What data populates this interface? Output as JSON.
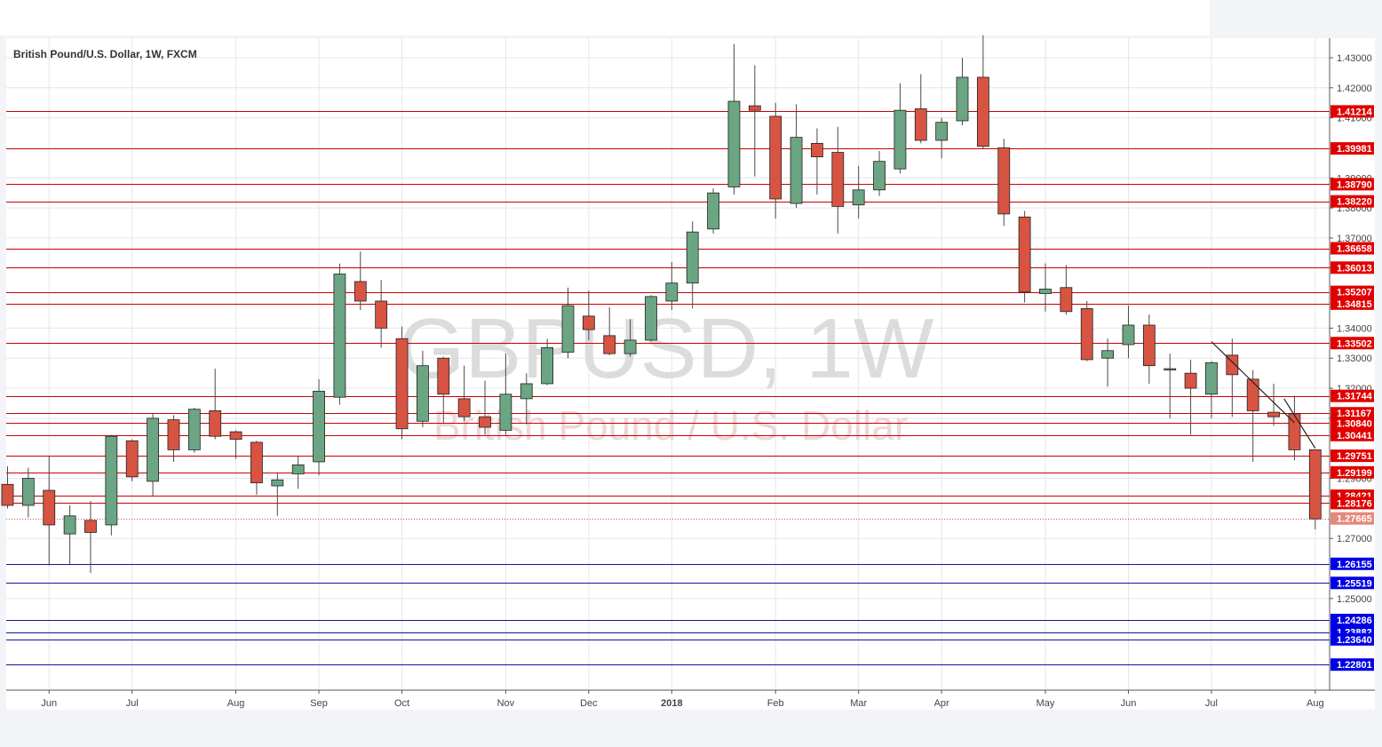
{
  "header": {
    "symbol_title": "British Pound/U.S. Dollar, 1W, FXCM"
  },
  "watermark": {
    "main": "GBPUSD, 1W",
    "sub": "British Pound / U.S. Dollar"
  },
  "colors": {
    "up_fill": "#6ba583",
    "down_fill": "#d75442",
    "wick": "#4a4a4a",
    "support_line": "#1414a0",
    "resistance_line": "#cc0000",
    "support_label_bg": "#0000e6",
    "resistance_label_bg": "#e00000",
    "current_label_bg": "#e3897c",
    "grid": "#e6e6e6"
  },
  "chart_data": {
    "type": "candlestick",
    "title": "British Pound/U.S. Dollar, 1W, FXCM",
    "ylim": [
      1.2195,
      1.4365
    ],
    "grid": true,
    "y_ticks": [
      "1.25000",
      "1.27000",
      "1.29000",
      "1.31000",
      "1.32000",
      "1.33000",
      "1.34000",
      "1.36000",
      "1.37000",
      "1.38000",
      "1.39000",
      "1.41000",
      "1.42000",
      "1.43000"
    ],
    "x_ticks": [
      {
        "label": "Jun",
        "week": 2
      },
      {
        "label": "Jul",
        "week": 6
      },
      {
        "label": "Aug",
        "week": 11
      },
      {
        "label": "Sep",
        "week": 15
      },
      {
        "label": "Oct",
        "week": 19
      },
      {
        "label": "Nov",
        "week": 24
      },
      {
        "label": "Dec",
        "week": 28
      },
      {
        "label": "2018",
        "week": 32
      },
      {
        "label": "Feb",
        "week": 37
      },
      {
        "label": "Mar",
        "week": 41
      },
      {
        "label": "Apr",
        "week": 45
      },
      {
        "label": "May",
        "week": 50
      },
      {
        "label": "Jun",
        "week": 54
      },
      {
        "label": "Jul",
        "week": 58
      },
      {
        "label": "Aug",
        "week": 63
      }
    ],
    "candles": [
      {
        "o": 1.288,
        "h": 1.294,
        "l": 1.28,
        "c": 1.281
      },
      {
        "o": 1.281,
        "h": 1.2935,
        "l": 1.277,
        "c": 1.29
      },
      {
        "o": 1.286,
        "h": 1.2975,
        "l": 1.261,
        "c": 1.2745
      },
      {
        "o": 1.2715,
        "h": 1.281,
        "l": 1.2615,
        "c": 1.2775
      },
      {
        "o": 1.276,
        "h": 1.2825,
        "l": 1.2585,
        "c": 1.272
      },
      {
        "o": 1.2745,
        "h": 1.3045,
        "l": 1.271,
        "c": 1.304
      },
      {
        "o": 1.3025,
        "h": 1.303,
        "l": 1.289,
        "c": 1.2905
      },
      {
        "o": 1.289,
        "h": 1.3115,
        "l": 1.284,
        "c": 1.31
      },
      {
        "o": 1.3095,
        "h": 1.311,
        "l": 1.2955,
        "c": 1.2995
      },
      {
        "o": 1.2995,
        "h": 1.3135,
        "l": 1.2985,
        "c": 1.313
      },
      {
        "o": 1.3125,
        "h": 1.3265,
        "l": 1.303,
        "c": 1.304
      },
      {
        "o": 1.3055,
        "h": 1.306,
        "l": 1.2965,
        "c": 1.303
      },
      {
        "o": 1.302,
        "h": 1.3025,
        "l": 1.2845,
        "c": 1.2885
      },
      {
        "o": 1.2875,
        "h": 1.292,
        "l": 1.2775,
        "c": 1.2895
      },
      {
        "o": 1.2915,
        "h": 1.2975,
        "l": 1.2865,
        "c": 1.2945
      },
      {
        "o": 1.2955,
        "h": 1.323,
        "l": 1.291,
        "c": 1.319
      },
      {
        "o": 1.317,
        "h": 1.3615,
        "l": 1.3145,
        "c": 1.358
      },
      {
        "o": 1.3555,
        "h": 1.3655,
        "l": 1.346,
        "c": 1.349
      },
      {
        "o": 1.349,
        "h": 1.356,
        "l": 1.3335,
        "c": 1.34
      },
      {
        "o": 1.3365,
        "h": 1.3405,
        "l": 1.303,
        "c": 1.3065
      },
      {
        "o": 1.309,
        "h": 1.3325,
        "l": 1.307,
        "c": 1.3275
      },
      {
        "o": 1.33,
        "h": 1.3305,
        "l": 1.3085,
        "c": 1.318
      },
      {
        "o": 1.3165,
        "h": 1.3275,
        "l": 1.309,
        "c": 1.3105
      },
      {
        "o": 1.3105,
        "h": 1.3225,
        "l": 1.3045,
        "c": 1.307
      },
      {
        "o": 1.306,
        "h": 1.3315,
        "l": 1.3045,
        "c": 1.318
      },
      {
        "o": 1.3165,
        "h": 1.325,
        "l": 1.308,
        "c": 1.3215
      },
      {
        "o": 1.3215,
        "h": 1.3365,
        "l": 1.321,
        "c": 1.3335
      },
      {
        "o": 1.332,
        "h": 1.3535,
        "l": 1.33,
        "c": 1.3475
      },
      {
        "o": 1.344,
        "h": 1.3525,
        "l": 1.336,
        "c": 1.3395
      },
      {
        "o": 1.3375,
        "h": 1.347,
        "l": 1.331,
        "c": 1.3315
      },
      {
        "o": 1.3315,
        "h": 1.343,
        "l": 1.3305,
        "c": 1.336
      },
      {
        "o": 1.336,
        "h": 1.351,
        "l": 1.3355,
        "c": 1.3505
      },
      {
        "o": 1.349,
        "h": 1.362,
        "l": 1.346,
        "c": 1.355
      },
      {
        "o": 1.355,
        "h": 1.3755,
        "l": 1.3465,
        "c": 1.372
      },
      {
        "o": 1.373,
        "h": 1.3865,
        "l": 1.3715,
        "c": 1.385
      },
      {
        "o": 1.387,
        "h": 1.4345,
        "l": 1.3845,
        "c": 1.4155
      },
      {
        "o": 1.414,
        "h": 1.4275,
        "l": 1.3905,
        "c": 1.4125
      },
      {
        "o": 1.4105,
        "h": 1.415,
        "l": 1.3765,
        "c": 1.383
      },
      {
        "o": 1.3815,
        "h": 1.4145,
        "l": 1.38,
        "c": 1.4035
      },
      {
        "o": 1.4015,
        "h": 1.4065,
        "l": 1.3845,
        "c": 1.397
      },
      {
        "o": 1.3985,
        "h": 1.407,
        "l": 1.3715,
        "c": 1.3805
      },
      {
        "o": 1.381,
        "h": 1.394,
        "l": 1.3765,
        "c": 1.386
      },
      {
        "o": 1.386,
        "h": 1.399,
        "l": 1.384,
        "c": 1.3955
      },
      {
        "o": 1.393,
        "h": 1.4215,
        "l": 1.3915,
        "c": 1.4125
      },
      {
        "o": 1.413,
        "h": 1.4245,
        "l": 1.4015,
        "c": 1.4025
      },
      {
        "o": 1.4025,
        "h": 1.41,
        "l": 1.3965,
        "c": 1.4085
      },
      {
        "o": 1.409,
        "h": 1.43,
        "l": 1.4075,
        "c": 1.4235
      },
      {
        "o": 1.4235,
        "h": 1.4375,
        "l": 1.3995,
        "c": 1.4005
      },
      {
        "o": 1.4,
        "h": 1.403,
        "l": 1.374,
        "c": 1.378
      },
      {
        "o": 1.377,
        "h": 1.379,
        "l": 1.3485,
        "c": 1.352
      },
      {
        "o": 1.3515,
        "h": 1.3615,
        "l": 1.3455,
        "c": 1.353
      },
      {
        "o": 1.3535,
        "h": 1.361,
        "l": 1.3445,
        "c": 1.3455
      },
      {
        "o": 1.3465,
        "h": 1.349,
        "l": 1.329,
        "c": 1.3295
      },
      {
        "o": 1.33,
        "h": 1.3365,
        "l": 1.3205,
        "c": 1.3325
      },
      {
        "o": 1.3345,
        "h": 1.3475,
        "l": 1.33,
        "c": 1.341
      },
      {
        "o": 1.341,
        "h": 1.3445,
        "l": 1.3215,
        "c": 1.3275
      },
      {
        "o": 1.3265,
        "h": 1.3315,
        "l": 1.31,
        "c": 1.3265
      },
      {
        "o": 1.325,
        "h": 1.3295,
        "l": 1.3045,
        "c": 1.32
      },
      {
        "o": 1.318,
        "h": 1.329,
        "l": 1.31,
        "c": 1.3285
      },
      {
        "o": 1.331,
        "h": 1.3365,
        "l": 1.3105,
        "c": 1.3245
      },
      {
        "o": 1.323,
        "h": 1.326,
        "l": 1.2955,
        "c": 1.3125
      },
      {
        "o": 1.312,
        "h": 1.3215,
        "l": 1.3075,
        "c": 1.3105
      },
      {
        "o": 1.3115,
        "h": 1.3175,
        "l": 1.296,
        "c": 1.2995
      },
      {
        "o": 1.2995,
        "h": 1.2995,
        "l": 1.273,
        "c": 1.2765
      }
    ],
    "resistance_levels": [
      "1.41214",
      "1.39981",
      "1.38790",
      "1.38220",
      "1.36658",
      "1.36013",
      "1.35207",
      "1.34815",
      "1.33502",
      "1.31744",
      "1.31167",
      "1.30840",
      "1.30441",
      "1.29751",
      "1.29199",
      "1.28421",
      "1.28176"
    ],
    "support_levels": [
      "1.26155",
      "1.25519",
      "1.24286",
      "1.23882",
      "1.23640",
      "1.22801"
    ],
    "current_price": "1.27665",
    "trendline": {
      "from": {
        "week": 58,
        "price": 1.3355
      },
      "to": {
        "week": 62,
        "price": 1.3085
      }
    },
    "trendline_2": {
      "from": {
        "week": 61.5,
        "price": 1.3165
      },
      "to": {
        "week": 63,
        "price": 1.3
      }
    }
  }
}
